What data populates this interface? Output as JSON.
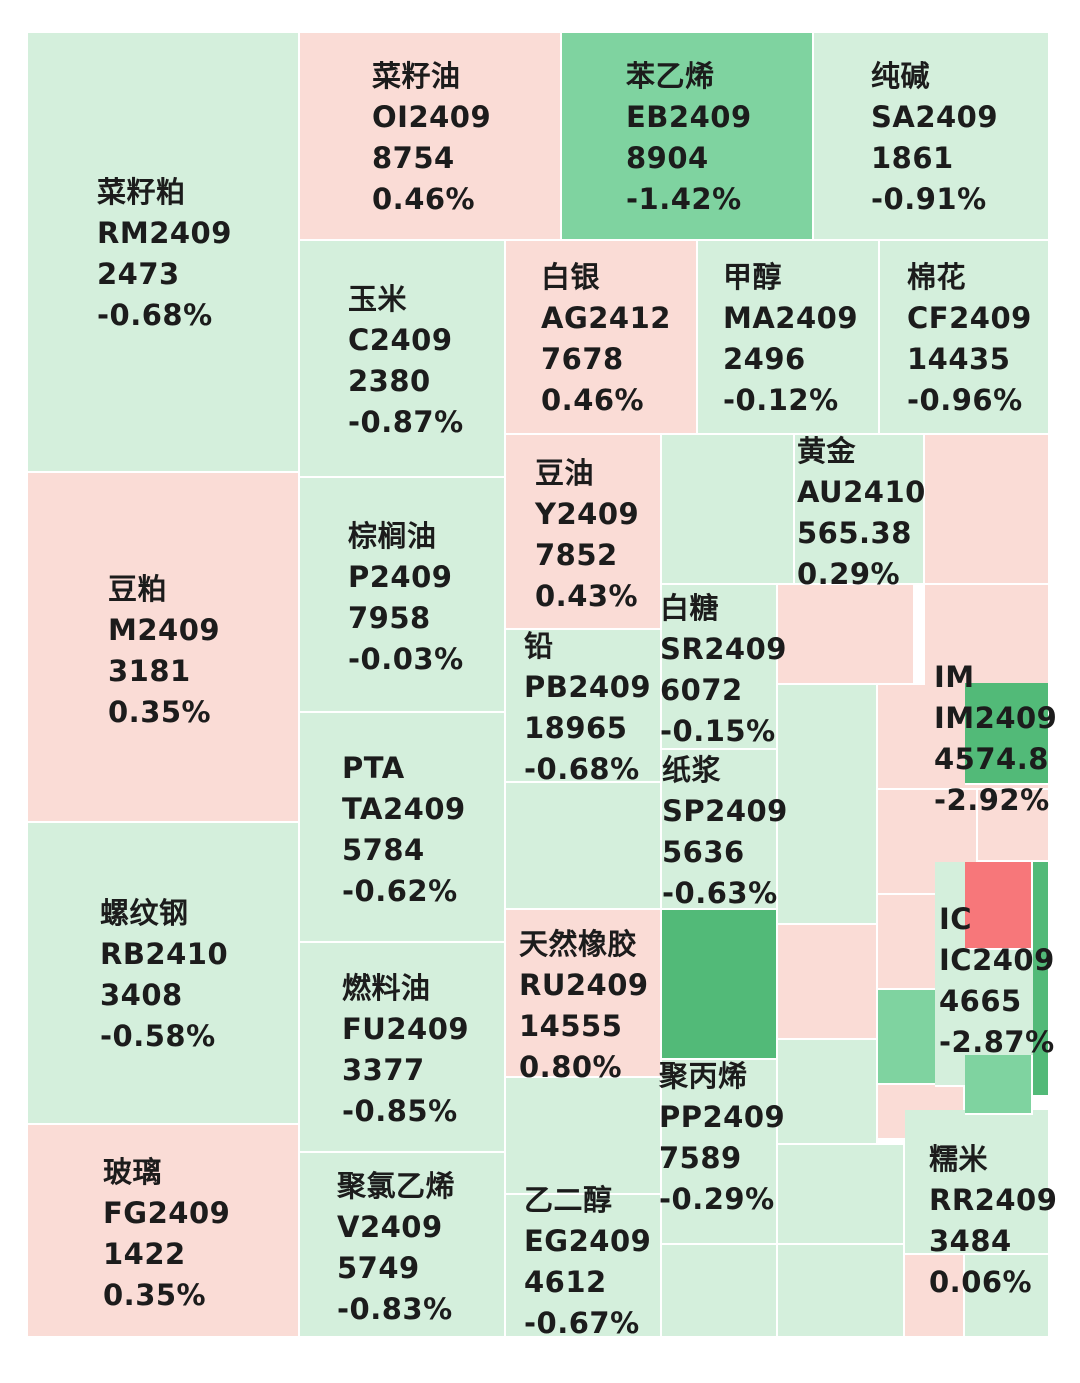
{
  "chart_data": {
    "type": "treemap",
    "colors": {
      "down_light": "#d4efdc",
      "down_mid": "#7fd3a0",
      "down_strong": "#52ba78",
      "up_light": "#fadcd6",
      "up_strong": "#f7777a"
    },
    "items": [
      {
        "name": "菜籽粕",
        "code": "RM2409",
        "price": "2473",
        "change": "-0.68%",
        "change_value": -0.68
      },
      {
        "name": "菜籽油",
        "code": "OI2409",
        "price": "8754",
        "change": "0.46%",
        "change_value": 0.46
      },
      {
        "name": "苯乙烯",
        "code": "EB2409",
        "price": "8904",
        "change": "-1.42%",
        "change_value": -1.42
      },
      {
        "name": "纯碱",
        "code": "SA2409",
        "price": "1861",
        "change": "-0.91%",
        "change_value": -0.91
      },
      {
        "name": "玉米",
        "code": "C2409",
        "price": "2380",
        "change": "-0.87%",
        "change_value": -0.87
      },
      {
        "name": "白银",
        "code": "AG2412",
        "price": "7678",
        "change": "0.46%",
        "change_value": 0.46
      },
      {
        "name": "甲醇",
        "code": "MA2409",
        "price": "2496",
        "change": "-0.12%",
        "change_value": -0.12
      },
      {
        "name": "棉花",
        "code": "CF2409",
        "price": "14435",
        "change": "-0.96%",
        "change_value": -0.96
      },
      {
        "name": "豆粕",
        "code": "M2409",
        "price": "3181",
        "change": "0.35%",
        "change_value": 0.35
      },
      {
        "name": "棕榈油",
        "code": "P2409",
        "price": "7958",
        "change": "-0.03%",
        "change_value": -0.03
      },
      {
        "name": "豆油",
        "code": "Y2409",
        "price": "7852",
        "change": "0.43%",
        "change_value": 0.43
      },
      {
        "name": "黄金",
        "code": "AU2410",
        "price": "565.38",
        "change": "0.29%",
        "change_value": 0.29
      },
      {
        "name": "白糖",
        "code": "SR2409",
        "price": "6072",
        "change": "-0.15%",
        "change_value": -0.15
      },
      {
        "name": "铅",
        "code": "PB2409",
        "price": "18965",
        "change": "-0.68%",
        "change_value": -0.68
      },
      {
        "name": "IM",
        "code": "IM2409",
        "price": "4574.8",
        "change": "-2.92%",
        "change_value": -2.92
      },
      {
        "name": "PTA",
        "code": "TA2409",
        "price": "5784",
        "change": "-0.62%",
        "change_value": -0.62
      },
      {
        "name": "纸浆",
        "code": "SP2409",
        "price": "5636",
        "change": "-0.63%",
        "change_value": -0.63
      },
      {
        "name": "螺纹钢",
        "code": "RB2410",
        "price": "3408",
        "change": "-0.58%",
        "change_value": -0.58
      },
      {
        "name": "天然橡胶",
        "code": "RU2409",
        "price": "14555",
        "change": "0.80%",
        "change_value": 0.8
      },
      {
        "name": "IC",
        "code": "IC2409",
        "price": "4665",
        "change": "-2.87%",
        "change_value": -2.87
      },
      {
        "name": "燃料油",
        "code": "FU2409",
        "price": "3377",
        "change": "-0.85%",
        "change_value": -0.85
      },
      {
        "name": "聚丙烯",
        "code": "PP2409",
        "price": "7589",
        "change": "-0.29%",
        "change_value": -0.29
      },
      {
        "name": "玻璃",
        "code": "FG2409",
        "price": "1422",
        "change": "0.35%",
        "change_value": 0.35
      },
      {
        "name": "糯米",
        "code": "RR2409",
        "price": "3484",
        "change": "0.06%",
        "change_value": 0.06
      },
      {
        "name": "聚氯乙烯",
        "code": "V2409",
        "price": "5749",
        "change": "-0.83%",
        "change_value": -0.83
      },
      {
        "name": "乙二醇",
        "code": "EG2409",
        "price": "4612",
        "change": "-0.67%",
        "change_value": -0.67
      }
    ]
  }
}
